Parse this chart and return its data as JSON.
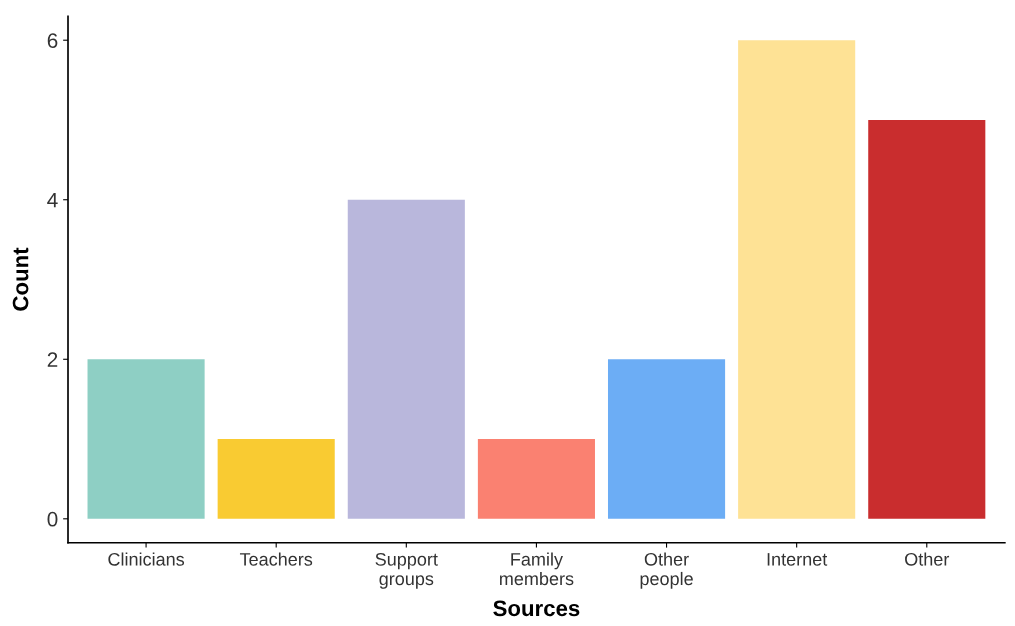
{
  "chart_data": {
    "type": "bar",
    "xlabel": "Sources",
    "ylabel": "Count",
    "categories": [
      "Clinicians",
      "Teachers",
      "Support\ngroups",
      "Family\nmembers",
      "Other\npeople",
      "Internet",
      "Other"
    ],
    "values": [
      2,
      1,
      4,
      1,
      2,
      6,
      5
    ],
    "colors": [
      "#8ecfc4",
      "#f9cb32",
      "#b9b7dc",
      "#fa8171",
      "#6cadf5",
      "#fee295",
      "#c92d2e"
    ],
    "ylim": [
      -0.3,
      6.3
    ],
    "yticks": [
      0,
      2,
      4,
      6
    ],
    "grid": false
  }
}
